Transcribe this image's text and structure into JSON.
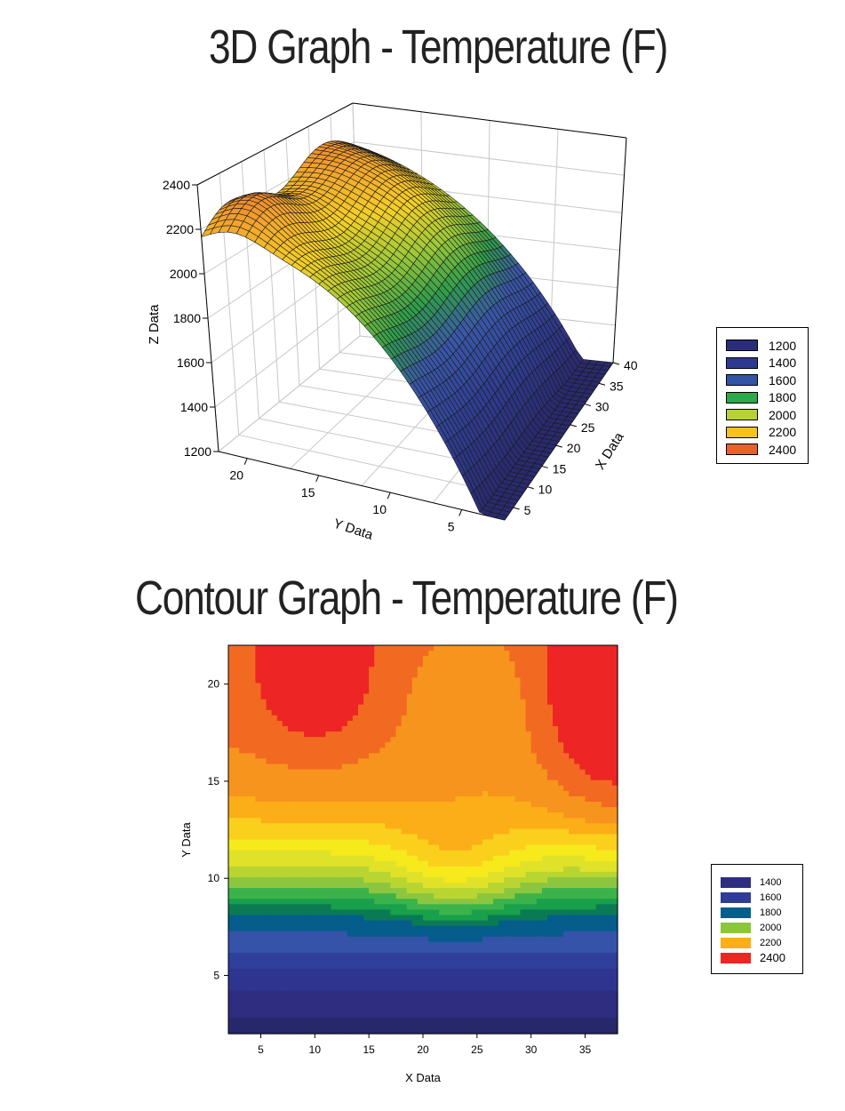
{
  "titles": {
    "surface": "3D Graph - Temperature (F)",
    "contour": "Contour Graph - Temperature (F)"
  },
  "chart_data": [
    {
      "type": "surface",
      "title": "3D Graph - Temperature (F)",
      "xlabel": "X Data",
      "ylabel": "Y Data",
      "zlabel": "Z Data",
      "xlim": [
        2,
        40
      ],
      "ylim": [
        2,
        22
      ],
      "zlim": [
        1200,
        2400
      ],
      "x_ticks": [
        "5",
        "10",
        "15",
        "20",
        "25",
        "30",
        "35",
        "40"
      ],
      "y_ticks": [
        "5",
        "10",
        "15",
        "20"
      ],
      "z_ticks": [
        "1200",
        "1400",
        "1600",
        "1800",
        "2000",
        "2200",
        "2400"
      ],
      "legend": {
        "position": "right",
        "entries": [
          {
            "label": "1200",
            "color": "#2b2d7a"
          },
          {
            "label": "1400",
            "color": "#2e3a8f"
          },
          {
            "label": "1600",
            "color": "#3553a3"
          },
          {
            "label": "1800",
            "color": "#2ea84a"
          },
          {
            "label": "2000",
            "color": "#b6d234"
          },
          {
            "label": "2200",
            "color": "#f8c21c"
          },
          {
            "label": "2400",
            "color": "#e8612c"
          }
        ]
      },
      "grid": true
    },
    {
      "type": "contour",
      "title": "Contour Graph - Temperature (F)",
      "xlabel": "X Data",
      "ylabel": "Y Data",
      "xlim": [
        2,
        38
      ],
      "ylim": [
        2,
        22
      ],
      "x_ticks": [
        "5",
        "10",
        "15",
        "20",
        "25",
        "30",
        "35"
      ],
      "y_ticks": [
        "5",
        "10",
        "15",
        "20"
      ],
      "legend": {
        "position": "right",
        "entries": [
          {
            "label": "1400",
            "color": "#2e2d7f"
          },
          {
            "label": "1600",
            "color": "#2e3c96"
          },
          {
            "label": "1800",
            "color": "#055d8c"
          },
          {
            "label": "2000",
            "color": "#8cc63f"
          },
          {
            "label": "2200",
            "color": "#fbae17"
          },
          {
            "label": "2400",
            "color": "#ed2524"
          }
        ]
      }
    }
  ]
}
